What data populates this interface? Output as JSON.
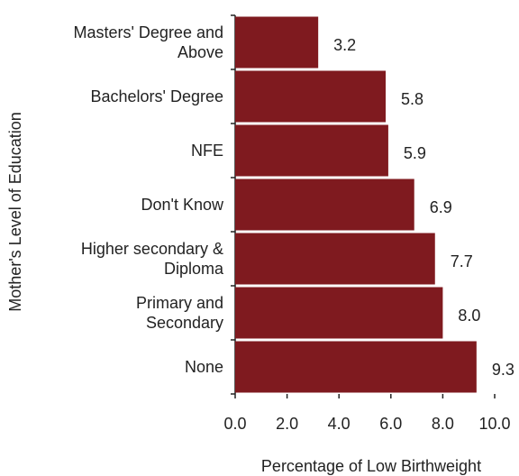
{
  "chart_data": {
    "type": "barh",
    "xlabel": "Percentage of Low Birthweight",
    "ylabel": "Mother's Level of Education",
    "categories": [
      "Masters' Degree and\nAbove",
      "Bachelors' Degree",
      "NFE",
      "Don't Know",
      "Higher secondary &\nDiploma",
      "Primary and\nSecondary",
      "None"
    ],
    "values": [
      3.2,
      5.8,
      5.9,
      6.9,
      7.7,
      8.0,
      9.3
    ],
    "value_labels": [
      "3.2",
      "5.8",
      "5.9",
      "6.9",
      "7.7",
      "8.0",
      "9.3"
    ],
    "color": "#7f1a1f",
    "xlim": [
      0,
      10
    ],
    "xticks": [
      {
        "value": 0,
        "label": "0.0"
      },
      {
        "value": 2,
        "label": "2.0"
      },
      {
        "value": 4,
        "label": "4.0"
      },
      {
        "value": 6,
        "label": "6.0"
      },
      {
        "value": 8,
        "label": "8.0"
      },
      {
        "value": 10,
        "label": "10.0"
      }
    ],
    "grid": false
  }
}
